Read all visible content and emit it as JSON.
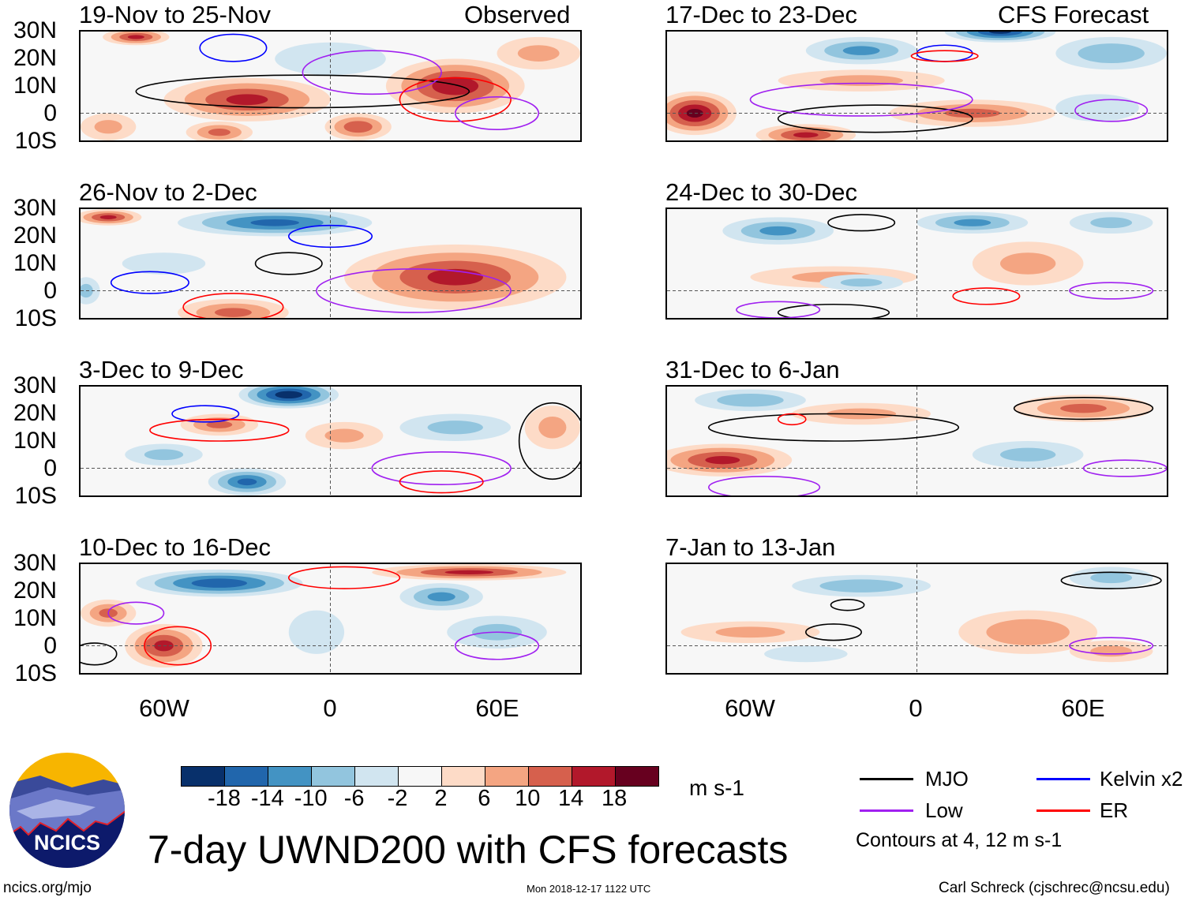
{
  "header": {
    "observed_label": "Observed",
    "forecast_label": "CFS Forecast"
  },
  "axes": {
    "lat_labels": [
      "30N",
      "20N",
      "10N",
      "0",
      "10S"
    ],
    "lon_labels": [
      "60W",
      "0",
      "60E"
    ]
  },
  "colorbar": {
    "levels": [
      "-18",
      "-14",
      "-10",
      "-6",
      "-2",
      "2",
      "6",
      "10",
      "14",
      "18"
    ],
    "colors": [
      "#08306b",
      "#2166ac",
      "#4393c3",
      "#92c5de",
      "#d1e5f0",
      "#f7f7f7",
      "#fddbc7",
      "#f4a582",
      "#d6604d",
      "#b2182b",
      "#67001f"
    ],
    "units": "m s-1"
  },
  "legend": {
    "items": [
      {
        "label": "MJO",
        "color": "#000000"
      },
      {
        "label": "Kelvin x2",
        "color": "#0000ff"
      },
      {
        "label": "Low",
        "color": "#a020f0"
      },
      {
        "label": "ER",
        "color": "#ff0000"
      }
    ],
    "note": "Contours at 4, 12 m s-1"
  },
  "title": "7-day UWND200 with CFS forecasts",
  "footer": {
    "url": "ncics.org/mjo",
    "timestamp": "Mon 2018-12-17 1122 UTC",
    "credit": "Carl Schreck (cjschrec@ncsu.edu)"
  },
  "logo": {
    "text": "NCICS"
  },
  "chart_data": {
    "type": "heatmap",
    "lon_range": [
      -90,
      90
    ],
    "lat_range": [
      -10,
      30
    ],
    "panels": [
      {
        "title": "19-Nov to 25-Nov",
        "group": "observed",
        "anomalies": [
          [
            -30,
            5,
            30,
            8,
            14
          ],
          [
            -40,
            -7,
            12,
            4,
            10
          ],
          [
            10,
            -5,
            12,
            5,
            12
          ],
          [
            45,
            10,
            25,
            10,
            16
          ],
          [
            -70,
            28,
            12,
            3,
            14
          ],
          [
            0,
            20,
            20,
            6,
            -4
          ],
          [
            75,
            22,
            15,
            6,
            6
          ],
          [
            -80,
            -5,
            10,
            5,
            6
          ]
        ],
        "contours": [
          [
            "MJO",
            -10,
            8,
            60,
            6
          ],
          [
            "Low",
            15,
            15,
            25,
            8
          ],
          [
            "Kelvin",
            -35,
            24,
            12,
            5
          ],
          [
            "ER",
            45,
            5,
            20,
            8
          ],
          [
            "Low",
            60,
            0,
            15,
            6
          ]
        ]
      },
      {
        "title": "26-Nov to 2-Dec",
        "group": "observed",
        "anomalies": [
          [
            -20,
            25,
            35,
            5,
            -14
          ],
          [
            45,
            5,
            40,
            12,
            14
          ],
          [
            -35,
            -8,
            20,
            5,
            10
          ],
          [
            -80,
            27,
            12,
            3,
            14
          ],
          [
            -88,
            0,
            5,
            5,
            -6
          ],
          [
            -60,
            10,
            15,
            4,
            -4
          ]
        ],
        "contours": [
          [
            "Kelvin",
            -65,
            3,
            14,
            4
          ],
          [
            "MJO",
            -15,
            10,
            12,
            4
          ],
          [
            "Low",
            30,
            0,
            35,
            8
          ],
          [
            "ER",
            -35,
            -6,
            18,
            5
          ],
          [
            "Kelvin",
            0,
            20,
            15,
            4
          ]
        ]
      },
      {
        "title": "3-Dec to 9-Dec",
        "group": "observed",
        "anomalies": [
          [
            -15,
            27,
            18,
            5,
            -20
          ],
          [
            -30,
            -5,
            14,
            5,
            -14
          ],
          [
            -40,
            16,
            14,
            4,
            10
          ],
          [
            5,
            12,
            14,
            5,
            6
          ],
          [
            45,
            15,
            20,
            5,
            -6
          ],
          [
            -60,
            5,
            14,
            4,
            -6
          ],
          [
            80,
            15,
            10,
            8,
            6
          ]
        ],
        "contours": [
          [
            "Kelvin",
            -45,
            20,
            12,
            3
          ],
          [
            "ER",
            -40,
            14,
            25,
            4
          ],
          [
            "MJO",
            80,
            10,
            12,
            14
          ],
          [
            "Low",
            40,
            0,
            25,
            6
          ],
          [
            "ER",
            40,
            -5,
            15,
            4
          ]
        ]
      },
      {
        "title": "10-Dec to 16-Dec",
        "group": "observed",
        "anomalies": [
          [
            -40,
            23,
            30,
            5,
            -16
          ],
          [
            -60,
            0,
            14,
            8,
            14
          ],
          [
            -80,
            12,
            10,
            5,
            10
          ],
          [
            40,
            18,
            15,
            5,
            -10
          ],
          [
            60,
            5,
            18,
            6,
            -6
          ],
          [
            50,
            27,
            35,
            3,
            14
          ],
          [
            -5,
            5,
            10,
            8,
            -4
          ]
        ],
        "contours": [
          [
            "Low",
            60,
            0,
            15,
            5
          ],
          [
            "ER",
            -55,
            0,
            12,
            7
          ],
          [
            "ER",
            5,
            25,
            20,
            4
          ],
          [
            "Low",
            -70,
            12,
            10,
            4
          ],
          [
            "MJO",
            -85,
            -3,
            8,
            4
          ]
        ]
      },
      {
        "title": "17-Dec to 23-Dec",
        "group": "forecast",
        "anomalies": [
          [
            -20,
            23,
            20,
            5,
            -10
          ],
          [
            30,
            30,
            20,
            4,
            -18
          ],
          [
            70,
            22,
            20,
            6,
            -8
          ],
          [
            -80,
            0,
            15,
            8,
            18
          ],
          [
            -40,
            -8,
            18,
            4,
            14
          ],
          [
            20,
            0,
            30,
            5,
            10
          ],
          [
            -20,
            12,
            30,
            4,
            6
          ],
          [
            65,
            2,
            15,
            5,
            -4
          ]
        ],
        "contours": [
          [
            "Kelvin",
            10,
            22,
            10,
            3
          ],
          [
            "ER",
            10,
            21,
            12,
            2
          ],
          [
            "MJO",
            -15,
            -2,
            35,
            5
          ],
          [
            "Low",
            70,
            1,
            13,
            4
          ],
          [
            "Low",
            -20,
            5,
            40,
            6
          ]
        ]
      },
      {
        "title": "24-Dec to 30-Dec",
        "group": "forecast",
        "anomalies": [
          [
            -50,
            22,
            20,
            5,
            -10
          ],
          [
            20,
            25,
            20,
            4,
            -10
          ],
          [
            70,
            25,
            15,
            4,
            -6
          ],
          [
            -30,
            5,
            30,
            4,
            6
          ],
          [
            40,
            10,
            20,
            8,
            6
          ],
          [
            -20,
            3,
            15,
            3,
            -6
          ]
        ],
        "contours": [
          [
            "MJO",
            -20,
            25,
            12,
            3
          ],
          [
            "Low",
            70,
            0,
            15,
            3
          ],
          [
            "ER",
            25,
            -2,
            12,
            3
          ],
          [
            "MJO",
            -30,
            -8,
            20,
            3
          ],
          [
            "Low",
            -50,
            -7,
            15,
            3
          ]
        ]
      },
      {
        "title": "31-Dec to 6-Jan",
        "group": "forecast",
        "anomalies": [
          [
            -70,
            3,
            25,
            6,
            14
          ],
          [
            60,
            22,
            25,
            5,
            10
          ],
          [
            -60,
            25,
            20,
            4,
            -8
          ],
          [
            40,
            5,
            20,
            5,
            -6
          ],
          [
            -20,
            20,
            25,
            4,
            6
          ]
        ],
        "contours": [
          [
            "MJO",
            -30,
            15,
            45,
            5
          ],
          [
            "MJO",
            60,
            22,
            25,
            4
          ],
          [
            "Low",
            75,
            0,
            15,
            3
          ],
          [
            "ER",
            -45,
            18,
            5,
            2
          ],
          [
            "Low",
            -55,
            -7,
            20,
            4
          ]
        ]
      },
      {
        "title": "7-Jan to 13-Jan",
        "group": "forecast",
        "anomalies": [
          [
            -20,
            22,
            25,
            4,
            -8
          ],
          [
            70,
            25,
            15,
            4,
            -6
          ],
          [
            40,
            5,
            25,
            8,
            8
          ],
          [
            -60,
            5,
            25,
            4,
            6
          ],
          [
            70,
            -2,
            15,
            4,
            6
          ],
          [
            -40,
            -3,
            15,
            3,
            -4
          ]
        ],
        "contours": [
          [
            "MJO",
            70,
            24,
            18,
            3
          ],
          [
            "Low",
            70,
            0,
            15,
            3
          ],
          [
            "MJO",
            -30,
            5,
            10,
            3
          ],
          [
            "MJO",
            -25,
            15,
            6,
            2
          ]
        ]
      }
    ]
  }
}
